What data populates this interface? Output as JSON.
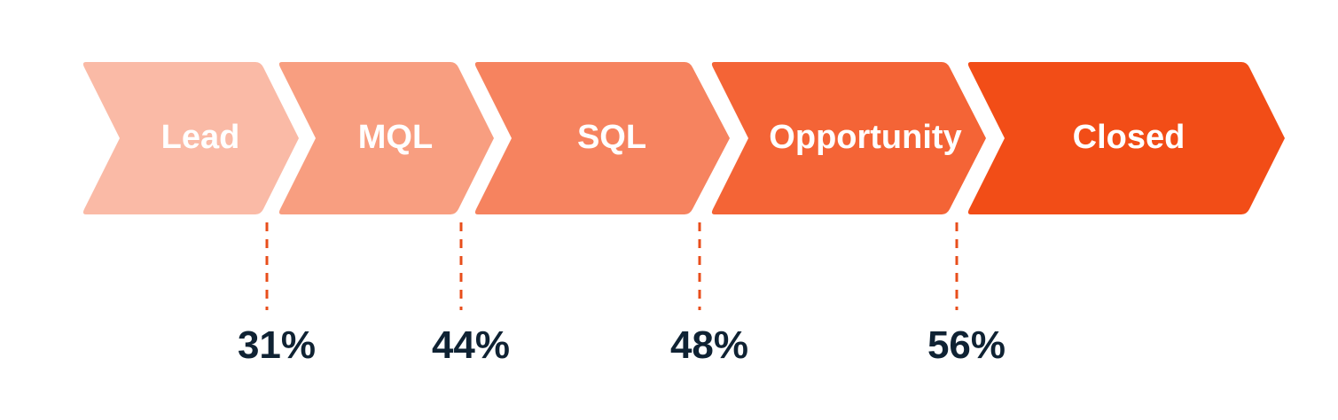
{
  "stages": [
    {
      "label": "Lead",
      "color": "#fabaa6"
    },
    {
      "label": "MQL",
      "color": "#f89e80"
    },
    {
      "label": "SQL",
      "color": "#f6835f"
    },
    {
      "label": "Opportunity",
      "color": "#f46436"
    },
    {
      "label": "Closed",
      "color": "#f24d17"
    }
  ],
  "conversion_rates": [
    "31%",
    "44%",
    "48%",
    "56%"
  ],
  "connector_color": "#e84e1b"
}
